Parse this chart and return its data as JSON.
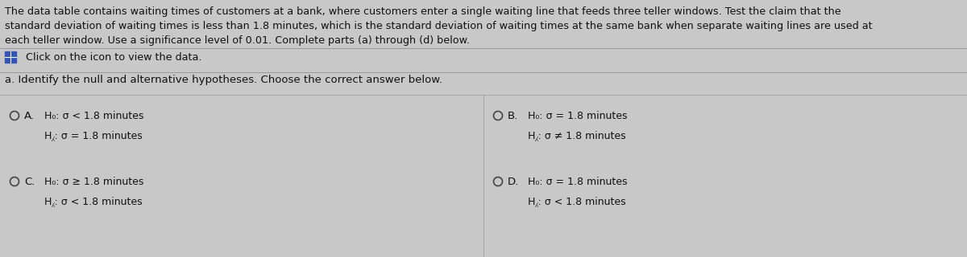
{
  "bg_color": "#c8c8c8",
  "text_color": "#111111",
  "divider_color": "#999999",
  "header_text_line1": "The data table contains waiting times of customers at a bank, where customers enter a single waiting line that feeds three teller windows. Test the claim that the",
  "header_text_line2": "standard deviation of waiting times is less than 1.8 minutes, which is the standard deviation of waiting times at the same bank when separate waiting lines are used at",
  "header_text_line3": "each teller window. Use a significance level of 0.01. Complete parts (a) through (d) below.",
  "icon_click_text": "  Click on the icon to view the data.",
  "section_label": "a. Identify the null and alternative hypotheses. Choose the correct answer below.",
  "optA_h0": "H₀: σ < 1.8 minutes",
  "optA_ha": "H⁁: σ = 1.8 minutes",
  "optB_h0": "H₀: σ = 1.8 minutes",
  "optB_ha": "H⁁: σ ≠ 1.8 minutes",
  "optC_h0": "H₀: σ ≥ 1.8 minutes",
  "optC_ha": "H⁁: σ < 1.8 minutes",
  "optD_h0": "H₀: σ = 1.8 minutes",
  "optD_ha": "H⁁: σ < 1.8 minutes",
  "label_A": "A.",
  "label_B": "B.",
  "label_C": "C.",
  "label_D": "D.",
  "font_size_header": 9.2,
  "font_size_icon": 9.2,
  "font_size_section": 9.5,
  "font_size_option_label": 9.5,
  "font_size_option_text": 9.0,
  "icon_color": "#3355bb"
}
